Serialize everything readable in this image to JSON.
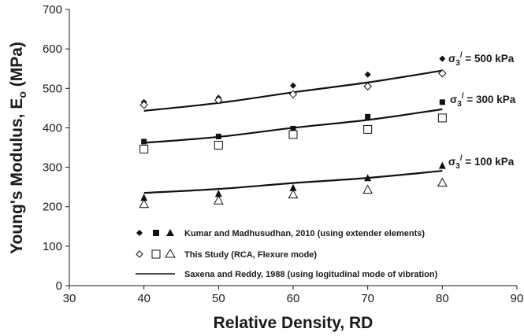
{
  "chart_data": {
    "type": "scatter",
    "xlabel": "Relative Density, RD",
    "ylabel": "Young's Modulus, Eo (MPa)",
    "ylabel_parts": {
      "main": "Young's Modulus, E",
      "sub": "o",
      "unit": " (MPa)"
    },
    "xlim": [
      30,
      90
    ],
    "ylim": [
      0,
      700
    ],
    "xticks": [
      30,
      40,
      50,
      60,
      70,
      80,
      90
    ],
    "yticks": [
      0,
      100,
      200,
      300,
      400,
      500,
      600,
      700
    ],
    "grid": false,
    "legend_position": "bottom-center",
    "curve_labels": [
      {
        "text": "σ3/ = 500 kPa",
        "sigma": "σ",
        "sub": "3",
        "sup": "/",
        "rest": " = 500 kPa"
      },
      {
        "text": "σ3/ = 300 kPa",
        "sigma": "σ",
        "sub": "3",
        "sup": "/",
        "rest": " = 300 kPa"
      },
      {
        "text": "σ3/ = 100 kPa",
        "sigma": "σ",
        "sub": "3",
        "sup": "/",
        "rest": " = 100 kPa"
      }
    ],
    "legend": [
      {
        "label": "Kumar and Madhusudhan, 2010 (using extender elements)",
        "markers": [
          "filled-diamond",
          "filled-square",
          "filled-triangle"
        ]
      },
      {
        "label": "This Study (RCA, Flexure mode)",
        "markers": [
          "open-diamond",
          "open-square",
          "open-triangle"
        ]
      },
      {
        "label": "Saxena and Reddy, 1988 (using logitudinal mode of vibration)",
        "markers": [
          "line"
        ]
      }
    ],
    "x": [
      40,
      50,
      60,
      70,
      80
    ],
    "series": [
      {
        "group": "500 kPa",
        "source": "Kumar and Madhusudhan, 2010",
        "marker": "filled-diamond",
        "values": [
          465,
          476,
          507,
          535,
          575
        ]
      },
      {
        "group": "500 kPa",
        "source": "This Study",
        "marker": "open-diamond",
        "values": [
          458,
          470,
          485,
          505,
          538
        ]
      },
      {
        "group": "500 kPa",
        "source": "Saxena and Reddy, 1988",
        "marker": "line",
        "values": [
          443,
          463,
          490,
          515,
          545
        ]
      },
      {
        "group": "300 kPa",
        "source": "Kumar and Madhusudhan, 2010",
        "marker": "filled-square",
        "values": [
          365,
          378,
          398,
          428,
          465
        ]
      },
      {
        "group": "300 kPa",
        "source": "This Study",
        "marker": "open-square",
        "values": [
          346,
          356,
          383,
          396,
          425
        ]
      },
      {
        "group": "300 kPa",
        "source": "Saxena and Reddy, 1988",
        "marker": "line",
        "values": [
          362,
          377,
          400,
          420,
          447
        ]
      },
      {
        "group": "100 kPa",
        "source": "Kumar and Madhusudhan, 2010",
        "marker": "filled-triangle",
        "values": [
          222,
          232,
          247,
          272,
          303
        ]
      },
      {
        "group": "100 kPa",
        "source": "This Study",
        "marker": "open-triangle",
        "values": [
          206,
          215,
          230,
          242,
          260
        ]
      },
      {
        "group": "100 kPa",
        "source": "Saxena and Reddy, 1988",
        "marker": "line",
        "values": [
          235,
          245,
          260,
          273,
          291
        ]
      }
    ]
  }
}
